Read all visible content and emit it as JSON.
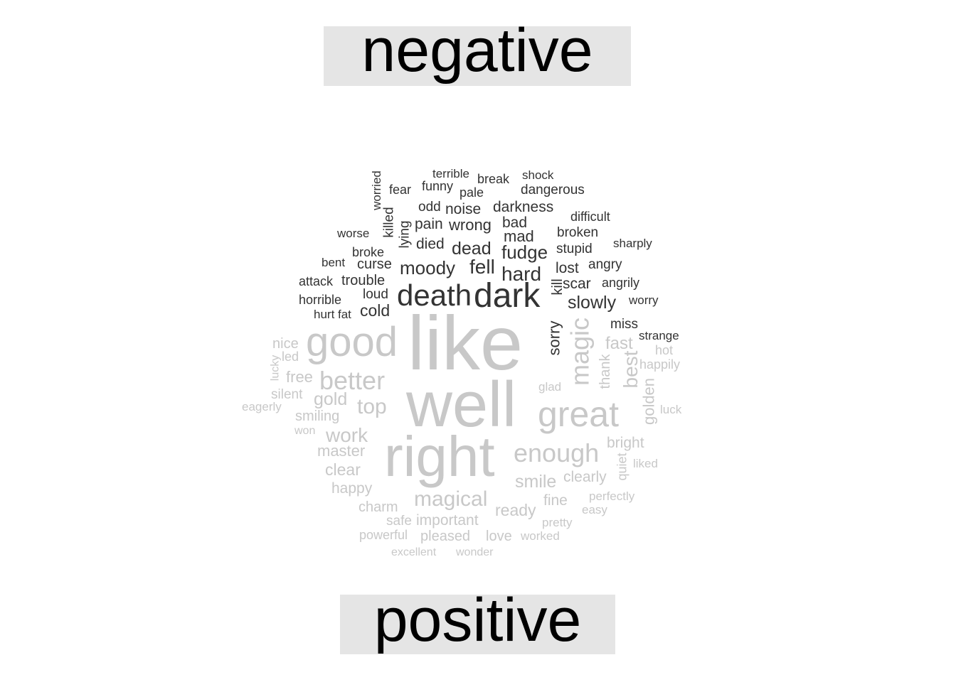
{
  "chart_data": {
    "type": "wordcloud",
    "colors": {
      "negative": "#333333",
      "positive": "#c8c8c8"
    },
    "groups": [
      {
        "label": "negative",
        "words": [
          {
            "text": "dark",
            "size": 48
          },
          {
            "text": "death",
            "size": 42
          },
          {
            "text": "fell",
            "size": 28
          },
          {
            "text": "moody",
            "size": 26
          },
          {
            "text": "hard",
            "size": 28
          },
          {
            "text": "fudge",
            "size": 26
          },
          {
            "text": "dead",
            "size": 25
          },
          {
            "text": "slowly",
            "size": 25
          },
          {
            "text": "cold",
            "size": 23
          },
          {
            "text": "wrong",
            "size": 22
          },
          {
            "text": "darkness",
            "size": 21
          },
          {
            "text": "noise",
            "size": 21
          },
          {
            "text": "sorry",
            "size": 22
          },
          {
            "text": "mad",
            "size": 22
          },
          {
            "text": "bad",
            "size": 21
          },
          {
            "text": "pain",
            "size": 21
          },
          {
            "text": "died",
            "size": 21
          },
          {
            "text": "scar",
            "size": 21
          },
          {
            "text": "lost",
            "size": 21
          },
          {
            "text": "trouble",
            "size": 20
          },
          {
            "text": "curse",
            "size": 20
          },
          {
            "text": "dangerous",
            "size": 19
          },
          {
            "text": "odd",
            "size": 19
          },
          {
            "text": "loud",
            "size": 19
          },
          {
            "text": "lying",
            "size": 19
          },
          {
            "text": "killed",
            "size": 19
          },
          {
            "text": "stupid",
            "size": 19
          },
          {
            "text": "broken",
            "size": 19
          },
          {
            "text": "angry",
            "size": 19
          },
          {
            "text": "miss",
            "size": 19
          },
          {
            "text": "fear",
            "size": 18
          },
          {
            "text": "funny",
            "size": 18
          },
          {
            "text": "pale",
            "size": 18
          },
          {
            "text": "break",
            "size": 18
          },
          {
            "text": "terrible",
            "size": 17
          },
          {
            "text": "broke",
            "size": 18
          },
          {
            "text": "horrible",
            "size": 18
          },
          {
            "text": "attack",
            "size": 18
          },
          {
            "text": "angrily",
            "size": 18
          },
          {
            "text": "difficult",
            "size": 18
          },
          {
            "text": "worse",
            "size": 17
          },
          {
            "text": "bent",
            "size": 17
          },
          {
            "text": "hurt",
            "size": 17
          },
          {
            "text": "fat",
            "size": 17
          },
          {
            "text": "sharply",
            "size": 17
          },
          {
            "text": "worry",
            "size": 17
          },
          {
            "text": "strange",
            "size": 17
          },
          {
            "text": "shock",
            "size": 17
          },
          {
            "text": "worried",
            "size": 17
          },
          {
            "text": "kill",
            "size": 20
          }
        ]
      },
      {
        "label": "positive",
        "words": [
          {
            "text": "like",
            "size": 108
          },
          {
            "text": "well",
            "size": 90
          },
          {
            "text": "right",
            "size": 80
          },
          {
            "text": "good",
            "size": 58
          },
          {
            "text": "great",
            "size": 50
          },
          {
            "text": "magic",
            "size": 36
          },
          {
            "text": "better",
            "size": 36
          },
          {
            "text": "enough",
            "size": 36
          },
          {
            "text": "magical",
            "size": 30
          },
          {
            "text": "top",
            "size": 30
          },
          {
            "text": "work",
            "size": 28
          },
          {
            "text": "best",
            "size": 28
          },
          {
            "text": "smile",
            "size": 25
          },
          {
            "text": "gold",
            "size": 25
          },
          {
            "text": "fast",
            "size": 24
          },
          {
            "text": "clear",
            "size": 23
          },
          {
            "text": "ready",
            "size": 23
          },
          {
            "text": "golden",
            "size": 22
          },
          {
            "text": "master",
            "size": 22
          },
          {
            "text": "free",
            "size": 22
          },
          {
            "text": "happy",
            "size": 21
          },
          {
            "text": "bright",
            "size": 21
          },
          {
            "text": "clearly",
            "size": 21
          },
          {
            "text": "important",
            "size": 21
          },
          {
            "text": "charm",
            "size": 20
          },
          {
            "text": "smiling",
            "size": 20
          },
          {
            "text": "nice",
            "size": 20
          },
          {
            "text": "fine",
            "size": 21
          },
          {
            "text": "thank",
            "size": 20
          },
          {
            "text": "pleased",
            "size": 20
          },
          {
            "text": "love",
            "size": 20
          },
          {
            "text": "silent",
            "size": 19
          },
          {
            "text": "safe",
            "size": 19
          },
          {
            "text": "powerful",
            "size": 18
          },
          {
            "text": "quiet",
            "size": 18
          },
          {
            "text": "hot",
            "size": 18
          },
          {
            "text": "led",
            "size": 18
          },
          {
            "text": "happily",
            "size": 18
          },
          {
            "text": "perfectly",
            "size": 17
          },
          {
            "text": "easy",
            "size": 17
          },
          {
            "text": "liked",
            "size": 17
          },
          {
            "text": "pretty",
            "size": 17
          },
          {
            "text": "worked",
            "size": 17
          },
          {
            "text": "eagerly",
            "size": 17
          },
          {
            "text": "lucky",
            "size": 16
          },
          {
            "text": "won",
            "size": 16
          },
          {
            "text": "excellent",
            "size": 16
          },
          {
            "text": "wonder",
            "size": 16
          },
          {
            "text": "glad",
            "size": 17
          },
          {
            "text": "luck",
            "size": 17
          }
        ]
      }
    ]
  }
}
